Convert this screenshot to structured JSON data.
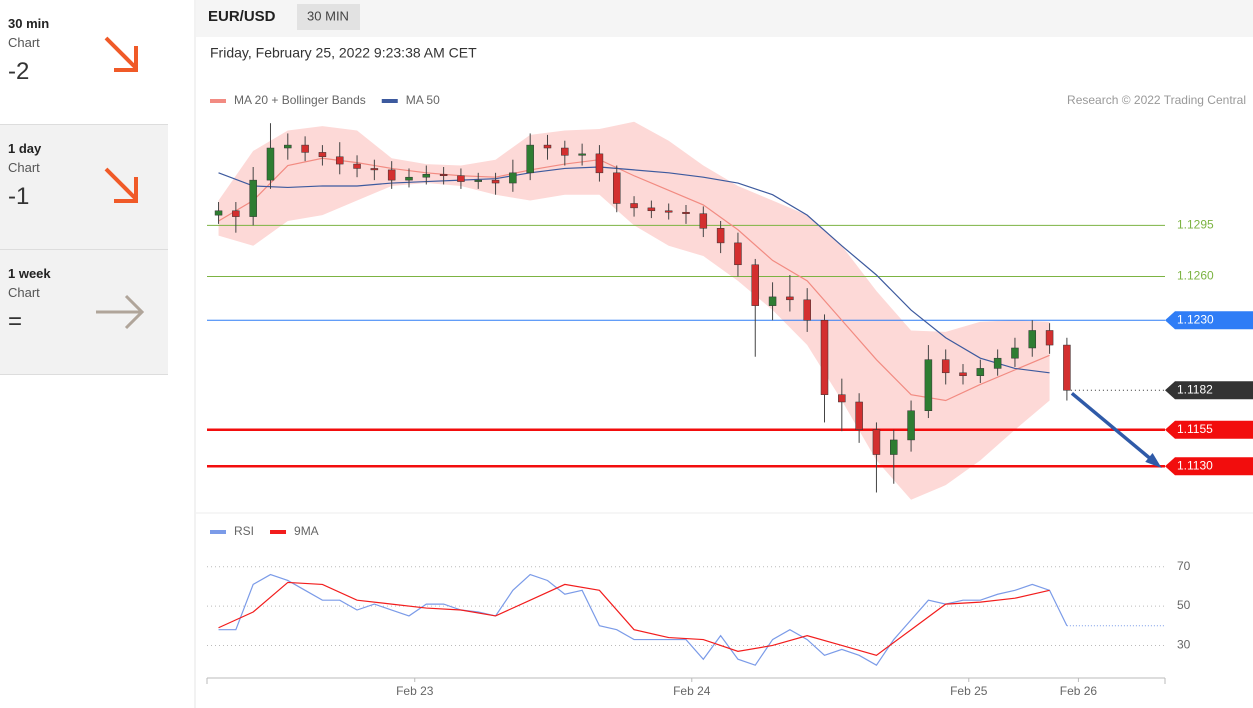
{
  "sidebar": {
    "items": [
      {
        "timeframe": "30 min",
        "label": "Chart",
        "signal": "-2"
      },
      {
        "timeframe": "1 day",
        "label": "Chart",
        "signal": "-1"
      },
      {
        "timeframe": "1 week",
        "label": "Chart",
        "signal": "="
      }
    ]
  },
  "header": {
    "symbol": "EUR/USD",
    "interval": "30 MIN",
    "timestamp": "Friday, February 25, 2022 9:23:38 AM CET",
    "credit": "Research © 2022 Trading Central"
  },
  "chart_data": [
    {
      "type": "candlestick",
      "xlim": [
        -18,
        65
      ],
      "ylim": [
        1.11,
        1.1422
      ],
      "up_color": "#2e7d32",
      "down_color": "#d32f2f",
      "x": [
        -17,
        -15.5,
        -14,
        -12.5,
        -11,
        -9.5,
        -8,
        -6.5,
        -5,
        -3.5,
        -2,
        -0.5,
        1,
        2.5,
        4,
        5.5,
        7,
        8.5,
        10,
        11.5,
        13,
        14.5,
        16,
        17.5,
        19,
        20.5,
        22,
        23.5,
        25,
        26.5,
        28,
        29.5,
        31,
        32.5,
        34,
        35.5,
        37,
        38.5,
        40,
        41.5,
        43,
        44.5,
        46,
        47.5,
        49,
        50.5,
        52,
        53.5,
        55,
        56.5
      ],
      "open": [
        1.1302,
        1.1305,
        1.1301,
        1.1326,
        1.1348,
        1.135,
        1.1345,
        1.1342,
        1.1337,
        1.1334,
        1.1333,
        1.1326,
        1.1328,
        1.133,
        1.1329,
        1.1325,
        1.1326,
        1.1324,
        1.1331,
        1.135,
        1.1348,
        1.1343,
        1.1344,
        1.1331,
        1.131,
        1.1307,
        1.1305,
        1.1304,
        1.1303,
        1.1293,
        1.1283,
        1.1268,
        1.124,
        1.1246,
        1.1244,
        1.123,
        1.1179,
        1.1174,
        1.1155,
        1.1138,
        1.1148,
        1.1168,
        1.1203,
        1.1194,
        1.1192,
        1.1197,
        1.1204,
        1.1211,
        1.1223,
        1.1213
      ],
      "high": [
        1.1311,
        1.1311,
        1.1335,
        1.1365,
        1.1358,
        1.1356,
        1.135,
        1.1352,
        1.1343,
        1.134,
        1.1339,
        1.1334,
        1.1336,
        1.1335,
        1.1334,
        1.1331,
        1.1331,
        1.134,
        1.1358,
        1.1357,
        1.1353,
        1.1351,
        1.135,
        1.1336,
        1.1315,
        1.1312,
        1.131,
        1.1309,
        1.1308,
        1.1298,
        1.129,
        1.1272,
        1.1256,
        1.1261,
        1.1252,
        1.1234,
        1.119,
        1.118,
        1.116,
        1.1155,
        1.1175,
        1.1213,
        1.121,
        1.12,
        1.1203,
        1.121,
        1.1218,
        1.123,
        1.1228,
        1.1218
      ],
      "low": [
        1.1296,
        1.129,
        1.1295,
        1.132,
        1.134,
        1.1339,
        1.1336,
        1.133,
        1.1328,
        1.1326,
        1.132,
        1.1321,
        1.1323,
        1.1323,
        1.132,
        1.132,
        1.1316,
        1.1318,
        1.1326,
        1.134,
        1.1336,
        1.1336,
        1.1325,
        1.1304,
        1.1301,
        1.13,
        1.1299,
        1.1296,
        1.1287,
        1.1276,
        1.126,
        1.1205,
        1.123,
        1.1236,
        1.1222,
        1.116,
        1.1154,
        1.1146,
        1.1112,
        1.1118,
        1.114,
        1.1163,
        1.1186,
        1.1186,
        1.1187,
        1.1192,
        1.1198,
        1.1205,
        1.1207,
        1.1175
      ],
      "close": [
        1.1305,
        1.1301,
        1.1326,
        1.1348,
        1.135,
        1.1345,
        1.1342,
        1.1337,
        1.1334,
        1.1333,
        1.1326,
        1.1328,
        1.133,
        1.1329,
        1.1325,
        1.1326,
        1.1324,
        1.1331,
        1.135,
        1.1348,
        1.1343,
        1.1344,
        1.1331,
        1.131,
        1.1307,
        1.1305,
        1.1304,
        1.1303,
        1.1293,
        1.1283,
        1.1268,
        1.124,
        1.1246,
        1.1244,
        1.123,
        1.1179,
        1.1174,
        1.1155,
        1.1138,
        1.1148,
        1.1168,
        1.1203,
        1.1194,
        1.1192,
        1.1197,
        1.1204,
        1.1211,
        1.1223,
        1.1213,
        1.1182
      ],
      "overlays": {
        "x": [
          -17,
          -14,
          -11,
          -8,
          -5,
          -2,
          1,
          4,
          7,
          10,
          13,
          16,
          19,
          22,
          25,
          28,
          31,
          34,
          37,
          40,
          43,
          46,
          49,
          52,
          55
        ],
        "series": [
          {
            "name": "MA 20 + Bollinger Bands",
            "color": "#f28b82",
            "band_color": "#fdd9d7",
            "values": [
              1.1298,
              1.1312,
              1.1336,
              1.1341,
              1.1338,
              1.1334,
              1.1331,
              1.1329,
              1.1328,
              1.1333,
              1.1337,
              1.134,
              1.1329,
              1.1319,
              1.1309,
              1.1292,
              1.1271,
              1.1257,
              1.123,
              1.1203,
              1.1179,
              1.1175,
              1.1186,
              1.1196,
              1.1206
            ],
            "upper": [
              1.1312,
              1.1346,
              1.136,
              1.1363,
              1.136,
              1.1341,
              1.1337,
              1.1336,
              1.134,
              1.1357,
              1.136,
              1.1361,
              1.1366,
              1.1353,
              1.1336,
              1.1322,
              1.1312,
              1.1302,
              1.1281,
              1.125,
              1.1223,
              1.1222,
              1.1229,
              1.123,
              1.1229
            ],
            "lower": [
              1.1288,
              1.1281,
              1.1298,
              1.1302,
              1.1312,
              1.1322,
              1.1324,
              1.1322,
              1.1316,
              1.1312,
              1.1316,
              1.1316,
              1.1295,
              1.1281,
              1.1274,
              1.1257,
              1.1237,
              1.1213,
              1.1175,
              1.1134,
              1.1107,
              1.1117,
              1.1134,
              1.1155,
              1.1175
            ]
          },
          {
            "name": "MA 50",
            "color": "#3d5a9e",
            "values": [
              1.1331,
              1.1322,
              1.1321,
              1.1322,
              1.1322,
              1.1324,
              1.1325,
              1.1326,
              1.1327,
              1.1331,
              1.1334,
              1.1335,
              1.1333,
              1.1331,
              1.1328,
              1.1324,
              1.1316,
              1.1302,
              1.1281,
              1.1261,
              1.1237,
              1.1218,
              1.1204,
              1.1197,
              1.1194
            ]
          }
        ]
      },
      "levels": [
        {
          "value": 1.1295,
          "label": "1.1295",
          "kind": "resistance",
          "color": "#7cb342"
        },
        {
          "value": 1.126,
          "label": "1.1260",
          "kind": "resistance",
          "color": "#7cb342"
        },
        {
          "value": 1.123,
          "label": "1.1230",
          "kind": "pivot",
          "color": "#2f7df6"
        },
        {
          "value": 1.1182,
          "label": "1.1182",
          "kind": "last",
          "color": "#333333"
        },
        {
          "value": 1.1155,
          "label": "1.1155",
          "kind": "support",
          "color": "#f20d0d"
        },
        {
          "value": 1.113,
          "label": "1.1130",
          "kind": "support",
          "color": "#f20d0d"
        }
      ]
    },
    {
      "type": "line",
      "xlim": [
        -18,
        65
      ],
      "ylim": [
        15,
        80
      ],
      "yticks": [
        30,
        50,
        70
      ],
      "xticks": [
        {
          "value": 0,
          "label": "Feb 23"
        },
        {
          "value": 24,
          "label": "Feb 24"
        },
        {
          "value": 48,
          "label": "Feb 25"
        },
        {
          "value": 57.5,
          "label": "Feb 26"
        }
      ],
      "series": [
        {
          "name": "RSI",
          "color": "#7b9be8",
          "x": [
            -17,
            -15.5,
            -14,
            -12.5,
            -11,
            -9.5,
            -8,
            -6.5,
            -5,
            -3.5,
            -2,
            -0.5,
            1,
            2.5,
            4,
            5.5,
            7,
            8.5,
            10,
            11.5,
            13,
            14.5,
            16,
            17.5,
            19,
            20.5,
            22,
            23.5,
            25,
            26.5,
            28,
            29.5,
            31,
            32.5,
            34,
            35.5,
            37,
            38.5,
            40,
            41.5,
            43,
            44.5,
            46,
            47.5,
            49,
            50.5,
            52,
            53.5,
            55,
            56.5
          ],
          "values": [
            38,
            38,
            61,
            66,
            63,
            58,
            53,
            53,
            48,
            51,
            48,
            45,
            51,
            51,
            48,
            47,
            45,
            58,
            66,
            63,
            56,
            58,
            40,
            38,
            33,
            33,
            33,
            33,
            23,
            35,
            23,
            20,
            33,
            38,
            33,
            25,
            28,
            25,
            20,
            33,
            43,
            53,
            51,
            53,
            53,
            56,
            58,
            61,
            58,
            40
          ]
        },
        {
          "name": "9MA",
          "color": "#f21d1d",
          "x": [
            -17,
            -14,
            -11,
            -8,
            -5,
            -2,
            1,
            4,
            7,
            10,
            13,
            16,
            19,
            22,
            25,
            28,
            31,
            34,
            37,
            40,
            43,
            46,
            49,
            52,
            55
          ],
          "values": [
            39,
            47,
            62,
            61,
            53,
            51,
            49,
            48,
            45,
            53,
            61,
            58,
            38,
            34,
            33,
            27,
            30,
            35,
            30,
            25,
            38,
            51,
            52,
            54,
            58
          ]
        }
      ]
    }
  ]
}
